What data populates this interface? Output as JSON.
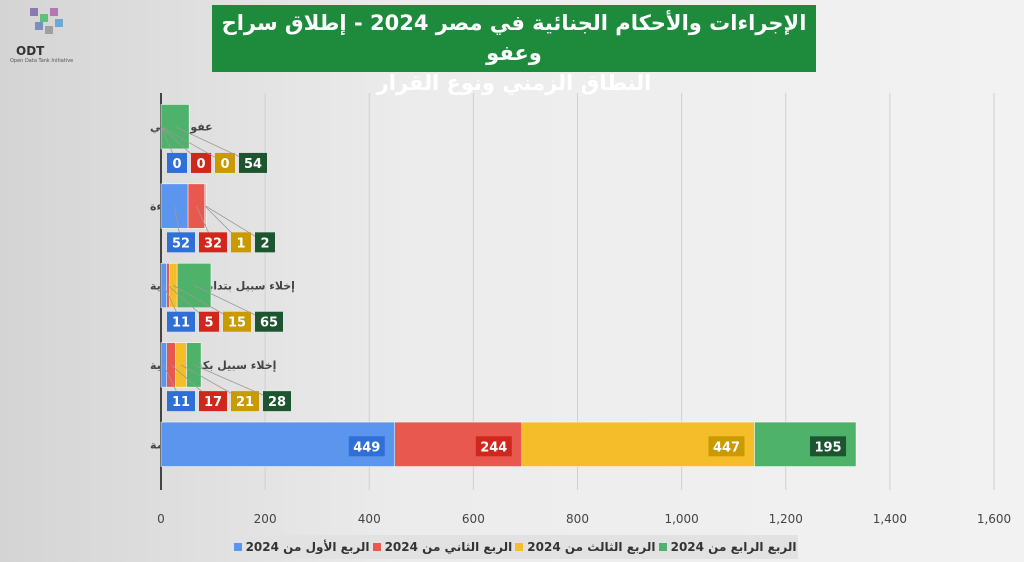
{
  "logo": {
    "text": "ODT",
    "subtext": "Open Data Tank Initiative"
  },
  "chart_data": {
    "type": "bar",
    "orientation": "horizontal",
    "stacked": true,
    "title": "الإجراءات والأحكام الجنائية في مصر 2024 - إطلاق سراح وعفو",
    "subtitle": "النطاق الزمني ونوع القرار",
    "categories": [
      "عفو رئاسي",
      "براءة",
      "إخلاء سبيل بتدابير احترازية",
      "إخلاء سبيل بكفالة مالية",
      "إخلاء سبيل بضمان محل الإقامة"
    ],
    "series": [
      {
        "name": "الربع الأول من 2024",
        "color": "#5b95ee",
        "label_color": "#2f6fd6",
        "values": [
          0,
          52,
          11,
          11,
          449
        ]
      },
      {
        "name": "الربع الثاني من 2024",
        "color": "#e9584e",
        "label_color": "#d0271d",
        "values": [
          0,
          32,
          5,
          17,
          244
        ]
      },
      {
        "name": "الربع الثالث من 2024",
        "color": "#f6bd2a",
        "label_color": "#c99b00",
        "values": [
          0,
          1,
          15,
          21,
          447
        ]
      },
      {
        "name": "الربع الرابع من 2024",
        "color": "#4eb26a",
        "label_color": "#1d5530",
        "values": [
          54,
          2,
          65,
          28,
          195
        ]
      }
    ],
    "xlim": [
      0,
      1600
    ],
    "xticks": [
      "0",
      "200",
      "400",
      "600",
      "800",
      "1,000",
      "1,200",
      "1,400",
      "1,600"
    ],
    "grid": true,
    "legend": "bottom"
  }
}
